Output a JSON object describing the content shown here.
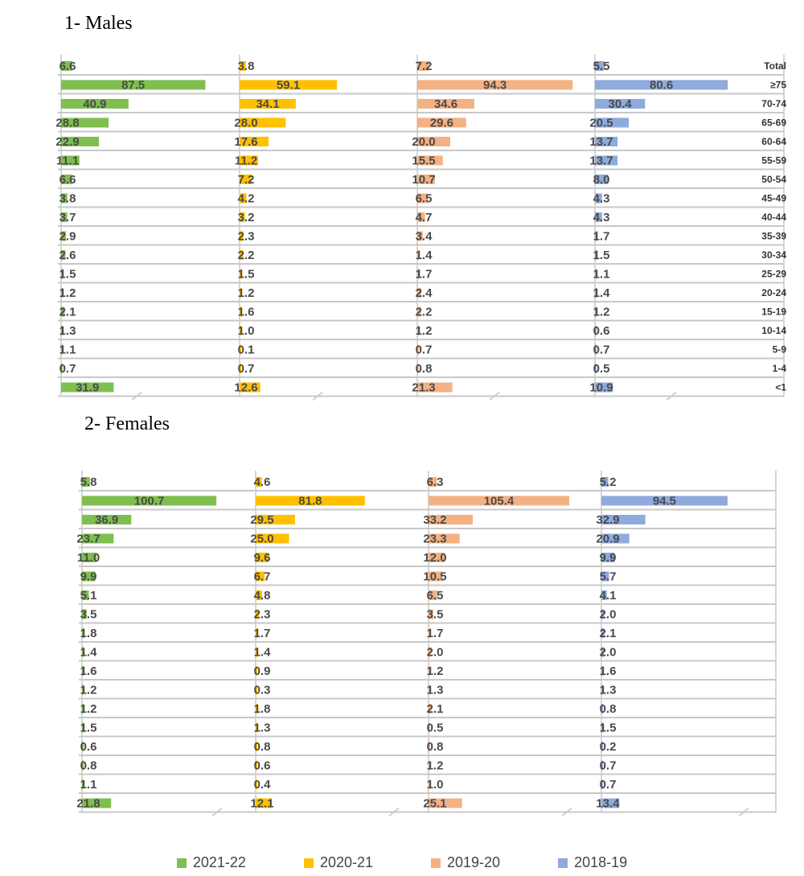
{
  "titles": {
    "males": "1-   Males",
    "females": "2-   Females"
  },
  "colors": {
    "2021-22": "#7fbf4f",
    "2020-21": "#ffc000",
    "2019-20": "#f4b183",
    "2018-19": "#8faadc",
    "grid": "#c8c8c8",
    "row_line": "#b0b0b0"
  },
  "chart_data": [
    {
      "type": "bar",
      "orientation": "horizontal",
      "subplot_title": "1-   Males",
      "categories": [
        "Total",
        "≥75",
        "70-74",
        "65-69",
        "60-64",
        "55-59",
        "50-54",
        "45-49",
        "40-44",
        "35-39",
        "30-34",
        "25-29",
        "20-24",
        "15-19",
        "10-14",
        "5-9",
        "1-4",
        "<1"
      ],
      "category_labels_visible": true,
      "series": [
        {
          "name": "2021-22",
          "values": [
            6.6,
            87.5,
            40.9,
            28.8,
            22.9,
            11.1,
            6.6,
            3.8,
            3.7,
            2.9,
            2.6,
            1.5,
            1.2,
            2.1,
            1.3,
            1.1,
            0.7,
            31.9
          ]
        },
        {
          "name": "2020-21",
          "values": [
            3.8,
            59.1,
            34.1,
            28.0,
            17.6,
            11.2,
            7.2,
            4.2,
            3.2,
            2.3,
            2.2,
            1.5,
            1.2,
            1.6,
            1.0,
            0.1,
            0.7,
            12.6
          ]
        },
        {
          "name": "2019-20",
          "values": [
            7.2,
            94.3,
            34.6,
            29.6,
            20.0,
            15.5,
            10.7,
            6.5,
            4.7,
            3.4,
            1.4,
            1.7,
            2.4,
            2.2,
            1.2,
            0.7,
            0.8,
            21.3
          ]
        },
        {
          "name": "2018-19",
          "values": [
            5.5,
            80.6,
            30.4,
            20.5,
            13.7,
            13.7,
            8.0,
            4.3,
            4.3,
            1.7,
            1.5,
            1.1,
            1.4,
            1.2,
            0.6,
            0.7,
            0.5,
            10.9
          ]
        }
      ],
      "grid": true
    },
    {
      "type": "bar",
      "orientation": "horizontal",
      "subplot_title": "2-   Females",
      "categories": [
        "Total",
        "≥75",
        "70-74",
        "65-69",
        "60-64",
        "55-59",
        "50-54",
        "45-49",
        "40-44",
        "35-39",
        "30-34",
        "25-29",
        "20-24",
        "15-19",
        "10-14",
        "5-9",
        "1-4",
        "<1"
      ],
      "category_labels_visible": false,
      "series": [
        {
          "name": "2021-22",
          "values": [
            5.8,
            100.7,
            36.9,
            23.7,
            11.0,
            9.9,
            5.1,
            3.5,
            1.8,
            1.4,
            1.6,
            1.2,
            1.2,
            1.5,
            0.6,
            0.8,
            1.1,
            21.8
          ]
        },
        {
          "name": "2020-21",
          "values": [
            4.6,
            81.8,
            29.5,
            25.0,
            9.6,
            6.7,
            4.8,
            2.3,
            1.7,
            1.4,
            0.9,
            0.3,
            1.8,
            1.3,
            0.8,
            0.6,
            0.4,
            12.1
          ]
        },
        {
          "name": "2019-20",
          "values": [
            6.3,
            105.4,
            33.2,
            23.3,
            12.0,
            10.5,
            6.5,
            3.5,
            1.7,
            2.0,
            1.2,
            1.3,
            2.1,
            0.5,
            0.8,
            1.2,
            1.0,
            25.1
          ]
        },
        {
          "name": "2018-19",
          "values": [
            5.2,
            94.5,
            32.9,
            20.9,
            9.9,
            5.7,
            4.1,
            2.0,
            2.1,
            2.0,
            1.6,
            1.3,
            0.8,
            1.5,
            0.2,
            0.7,
            0.7,
            13.4
          ]
        }
      ],
      "grid": true
    }
  ],
  "legend": [
    {
      "label": "2021-22",
      "color": "#7fbf4f"
    },
    {
      "label": "2020-21",
      "color": "#ffc000"
    },
    {
      "label": "2019-20",
      "color": "#f4b183"
    },
    {
      "label": "2018-19",
      "color": "#8faadc"
    }
  ]
}
